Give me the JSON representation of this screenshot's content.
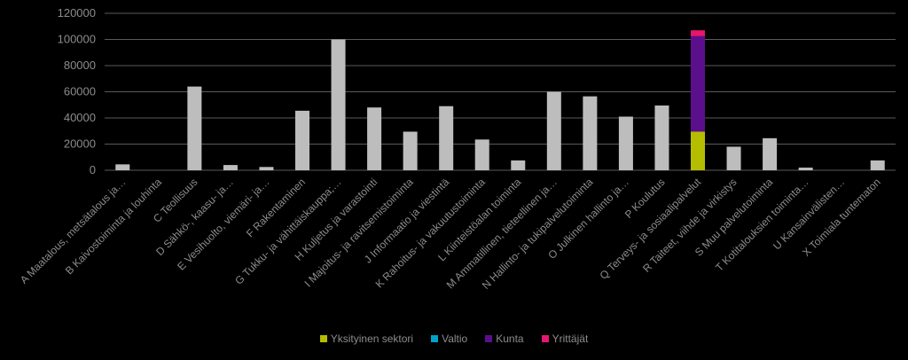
{
  "chart_data": {
    "type": "bar",
    "stacked": true,
    "ylim": [
      0,
      120000
    ],
    "yticks": [
      "0",
      "20000",
      "40000",
      "60000",
      "80000",
      "100000",
      "120000"
    ],
    "grid": true,
    "legend_position": "bottom",
    "categories": [
      "A Maatalous, metsätalous ja…",
      "B Kaivostoiminta ja louhinta",
      "C Teollisuus",
      "D Sähkö-, kaasu- ja…",
      "E Vesihuolto, viemäri- ja…",
      "F Rakentaminen",
      "G Tukku- ja vähittäiskauppa;…",
      "H Kuljetus ja varastointi",
      "I Majoitus- ja ravitsemistoiminta",
      "J Informaatio ja viestintä",
      "K Rahoitus- ja vakuutustoiminta",
      "L Kiinteistöalan toiminta",
      "M Ammatillinen, tieteellinen ja…",
      "N Hallinto- ja tukipalvelutoiminta",
      "O Julkinen hallinto ja…",
      "P Koulutus",
      "Q Terveys- ja sosiaalipalvelut",
      "R Taiteet, viihde ja virkistys",
      "S Muu palvelutoiminta",
      "T Kotitalouksien toiminta…",
      "U Kansainvälisten…",
      "X Toimiala tuntematon"
    ],
    "series": [
      {
        "name": "Yksityinen sektori",
        "color": "#b5bd00",
        "values": [
          0,
          0,
          0,
          0,
          0,
          0,
          0,
          0,
          0,
          0,
          0,
          0,
          0,
          0,
          0,
          0,
          29500,
          0,
          0,
          0,
          0,
          0
        ]
      },
      {
        "name": "Valtio",
        "color": "#00a3c7",
        "values": [
          0,
          0,
          0,
          0,
          0,
          0,
          0,
          0,
          0,
          0,
          0,
          0,
          0,
          0,
          0,
          0,
          0,
          0,
          0,
          0,
          0,
          0
        ]
      },
      {
        "name": "Kunta",
        "color": "#5b0f8c",
        "values": [
          0,
          0,
          0,
          0,
          0,
          0,
          0,
          0,
          0,
          0,
          0,
          0,
          0,
          0,
          0,
          0,
          73000,
          0,
          0,
          0,
          0,
          0
        ]
      },
      {
        "name": "Yrittäjät",
        "color": "#e5176e",
        "values": [
          0,
          0,
          0,
          0,
          0,
          0,
          0,
          0,
          0,
          0,
          0,
          0,
          0,
          0,
          0,
          0,
          4500,
          0,
          0,
          0,
          0,
          0
        ]
      },
      {
        "name": "",
        "color": "#bdbdbd",
        "values": [
          4500,
          0,
          64000,
          4000,
          2500,
          45500,
          100000,
          48000,
          29500,
          49000,
          23500,
          7500,
          60000,
          56500,
          41000,
          49500,
          0,
          18000,
          24500,
          2000,
          0,
          7500
        ]
      }
    ]
  }
}
